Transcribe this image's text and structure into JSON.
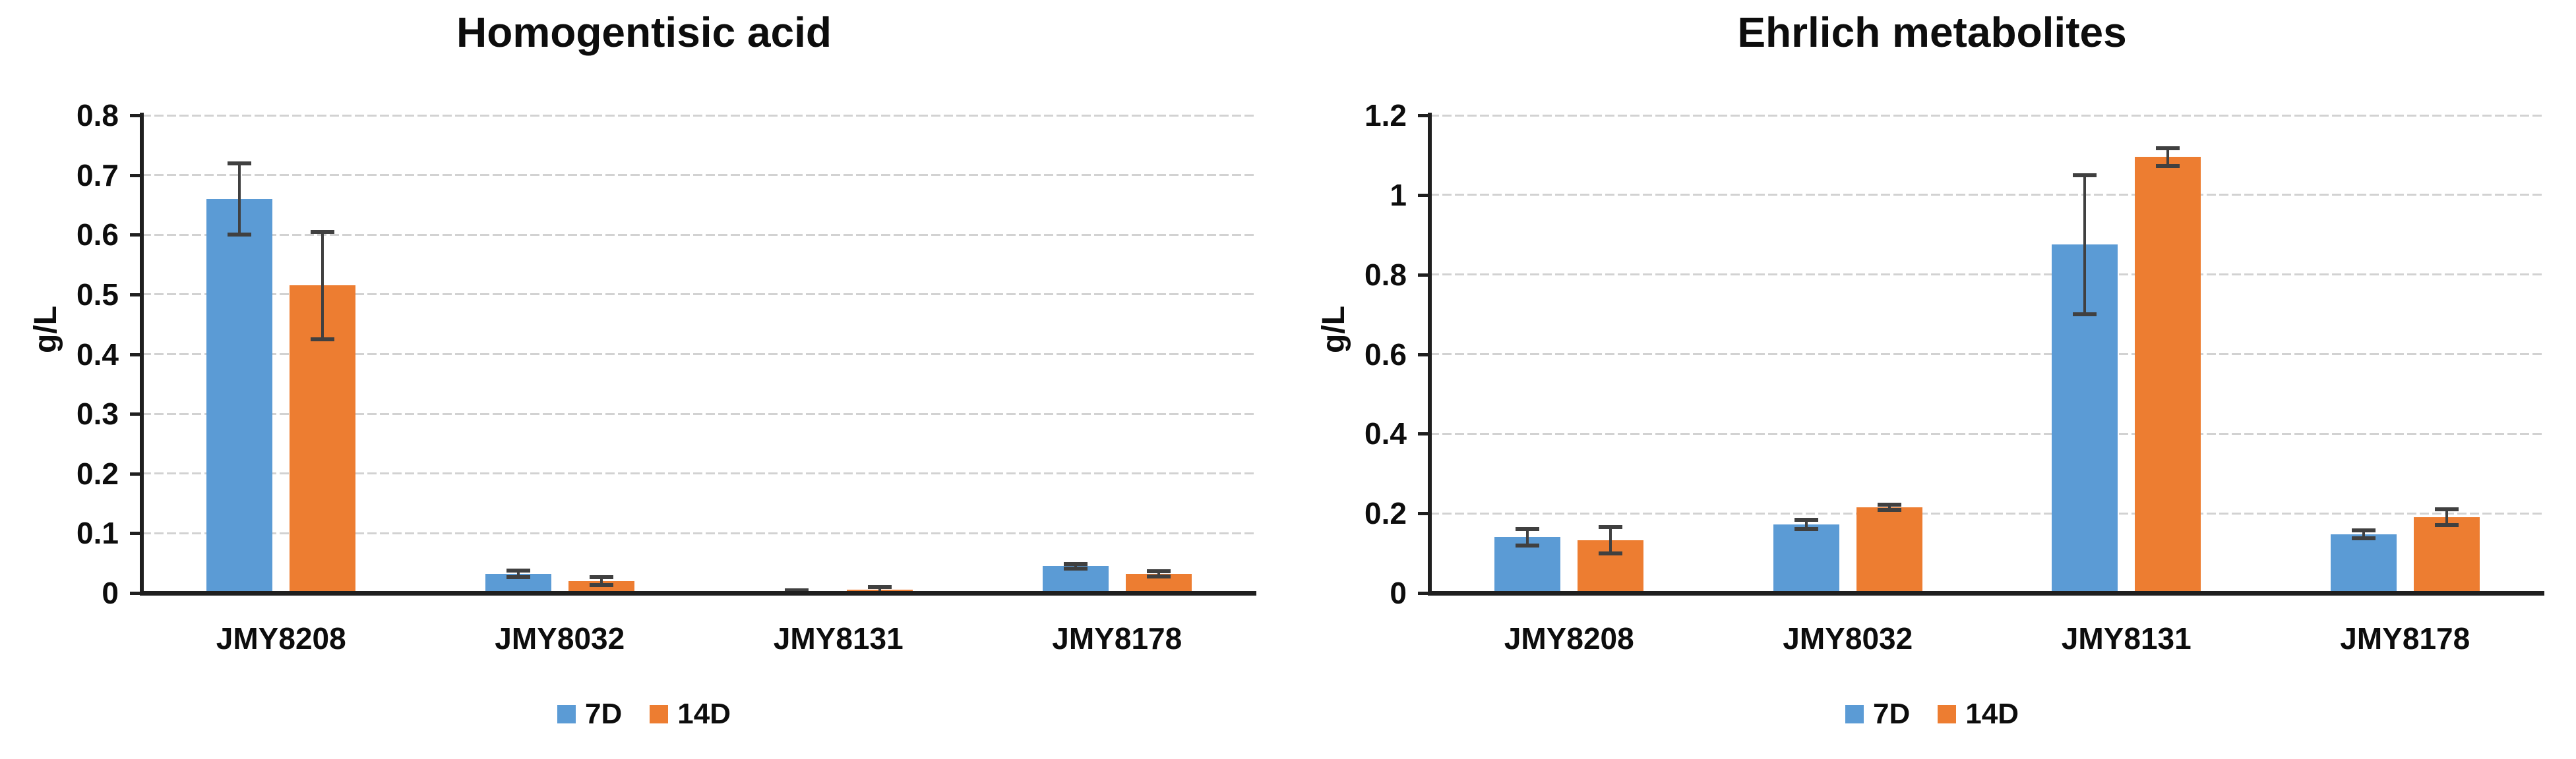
{
  "colors": {
    "series_7d": "#5B9BD5",
    "series_14d": "#ED7D31",
    "gridline": "#D2D2D2",
    "axis": "#1f1f1f",
    "error_bar": "#404040",
    "text": "#0d0d0d",
    "background": "#ffffff"
  },
  "chart_data": [
    {
      "type": "bar",
      "title": "Homogentisic acid",
      "xlabel": "",
      "ylabel": "g/L",
      "categories": [
        "JMY8208",
        "JMY8032",
        "JMY8131",
        "JMY8178"
      ],
      "series": [
        {
          "name": "7D",
          "color": "#5B9BD5",
          "values": [
            0.66,
            0.032,
            0.002,
            0.045
          ],
          "errors": [
            0.06,
            0.005,
            0.002,
            0.004
          ]
        },
        {
          "name": "14D",
          "color": "#ED7D31",
          "values": [
            0.515,
            0.02,
            0.005,
            0.032
          ],
          "errors": [
            0.09,
            0.007,
            0.005,
            0.004
          ]
        }
      ],
      "ylim": [
        0,
        0.8
      ],
      "ytick_values": [
        0,
        0.1,
        0.2,
        0.3,
        0.4,
        0.5,
        0.6,
        0.7,
        0.8
      ],
      "ytick_labels": [
        "0",
        "0.1",
        "0.2",
        "0.3",
        "0.4",
        "0.5",
        "0.6",
        "0.7",
        "0.8"
      ],
      "grid": "horizontal",
      "legend_position": "bottom"
    },
    {
      "type": "bar",
      "title": "Ehrlich metabolites",
      "xlabel": "",
      "ylabel": "g/L",
      "categories": [
        "JMY8208",
        "JMY8032",
        "JMY8131",
        "JMY8178"
      ],
      "series": [
        {
          "name": "7D",
          "color": "#5B9BD5",
          "values": [
            0.14,
            0.172,
            0.875,
            0.148
          ],
          "errors": [
            0.02,
            0.012,
            0.175,
            0.01
          ]
        },
        {
          "name": "14D",
          "color": "#ED7D31",
          "values": [
            0.133,
            0.215,
            1.095,
            0.19
          ],
          "errors": [
            0.033,
            0.006,
            0.022,
            0.02
          ]
        }
      ],
      "ylim": [
        0,
        1.2
      ],
      "ytick_values": [
        0,
        0.2,
        0.4,
        0.6,
        0.8,
        1,
        1.2
      ],
      "ytick_labels": [
        "0",
        "0.2",
        "0.4",
        "0.6",
        "0.8",
        "1",
        "1.2"
      ],
      "grid": "horizontal",
      "legend_position": "bottom"
    }
  ]
}
